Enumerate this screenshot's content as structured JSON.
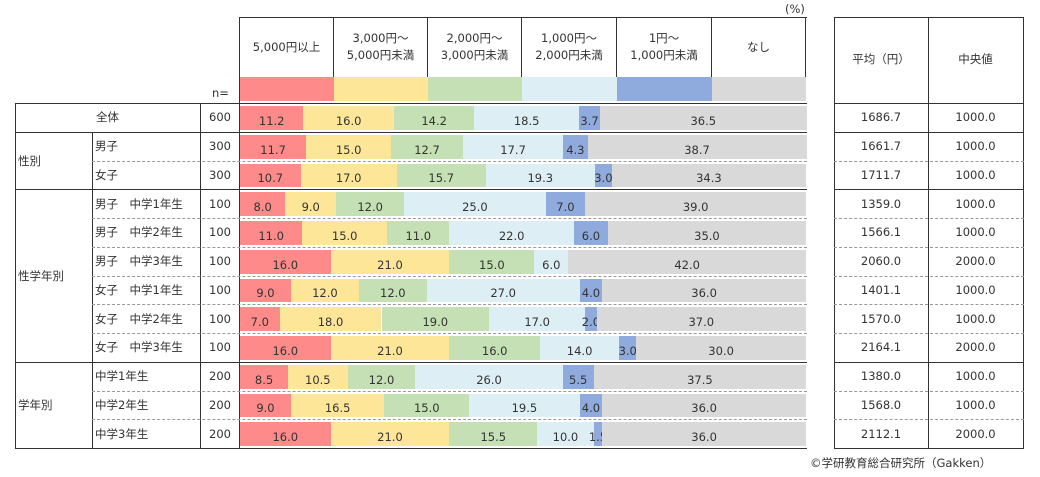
{
  "chart_data": {
    "type": "bar",
    "stacked": true,
    "orientation": "horizontal",
    "unit_label": "(%)",
    "n_label": "n=",
    "legend": [
      {
        "label": "5,000円以上",
        "color": "#fe8a8a"
      },
      {
        "label": "3,000円～\n5,000円未満",
        "color": "#fee699"
      },
      {
        "label": "2,000円～\n3,000円未満",
        "color": "#c5e0b4"
      },
      {
        "label": "1,000円～\n2,000円未満",
        "color": "#ddeff5"
      },
      {
        "label": "1円～\n1,000円未満",
        "color": "#8faadc"
      },
      {
        "label": "なし",
        "color": "#d9d9d9"
      }
    ],
    "stats_headers": [
      "平均（円）",
      "中央値"
    ],
    "groups": [
      {
        "label": "全体",
        "rows": [
          0
        ]
      },
      {
        "label": "性別",
        "rows": [
          1,
          2
        ]
      },
      {
        "label": "性学年別",
        "rows": [
          3,
          4,
          5,
          6,
          7,
          8
        ]
      },
      {
        "label": "学年別",
        "rows": [
          9,
          10,
          11
        ]
      }
    ],
    "rows": [
      {
        "label": "",
        "n": "600",
        "values": [
          11.2,
          16.0,
          14.2,
          18.5,
          3.7,
          36.5
        ],
        "mean": "1686.7",
        "median": "1000.0"
      },
      {
        "label": "男子",
        "n": "300",
        "values": [
          11.7,
          15.0,
          12.7,
          17.7,
          4.3,
          38.7
        ],
        "mean": "1661.7",
        "median": "1000.0"
      },
      {
        "label": "女子",
        "n": "300",
        "values": [
          10.7,
          17.0,
          15.7,
          19.3,
          3.0,
          34.3
        ],
        "mean": "1711.7",
        "median": "1000.0"
      },
      {
        "label": "男子　中学1年生",
        "n": "100",
        "values": [
          8.0,
          9.0,
          12.0,
          25.0,
          7.0,
          39.0
        ],
        "mean": "1359.0",
        "median": "1000.0"
      },
      {
        "label": "男子　中学2年生",
        "n": "100",
        "values": [
          11.0,
          15.0,
          11.0,
          22.0,
          6.0,
          35.0
        ],
        "mean": "1566.1",
        "median": "1000.0"
      },
      {
        "label": "男子　中学3年生",
        "n": "100",
        "values": [
          16.0,
          21.0,
          15.0,
          6.0,
          0,
          42.0
        ],
        "mean": "2060.0",
        "median": "2000.0"
      },
      {
        "label": "女子　中学1年生",
        "n": "100",
        "values": [
          9.0,
          12.0,
          12.0,
          27.0,
          4.0,
          36.0
        ],
        "mean": "1401.1",
        "median": "1000.0"
      },
      {
        "label": "女子　中学2年生",
        "n": "100",
        "values": [
          7.0,
          18.0,
          19.0,
          17.0,
          2.0,
          37.0
        ],
        "mean": "1570.0",
        "median": "1000.0"
      },
      {
        "label": "女子　中学3年生",
        "n": "100",
        "values": [
          16.0,
          21.0,
          16.0,
          14.0,
          3.0,
          30.0
        ],
        "mean": "2164.1",
        "median": "2000.0"
      },
      {
        "label": "中学1年生",
        "n": "200",
        "values": [
          8.5,
          10.5,
          12.0,
          26.0,
          5.5,
          37.5
        ],
        "mean": "1380.0",
        "median": "1000.0"
      },
      {
        "label": "中学2年生",
        "n": "200",
        "values": [
          9.0,
          16.5,
          15.0,
          19.5,
          4.0,
          36.0
        ],
        "mean": "1568.0",
        "median": "1000.0"
      },
      {
        "label": "中学3年生",
        "n": "200",
        "values": [
          16.0,
          21.0,
          15.5,
          10.0,
          1.5,
          36.0
        ],
        "mean": "2112.1",
        "median": "2000.0"
      }
    ],
    "xlim": [
      0,
      100
    ]
  },
  "copyright": "©学研教育総合研究所（Gakken）"
}
